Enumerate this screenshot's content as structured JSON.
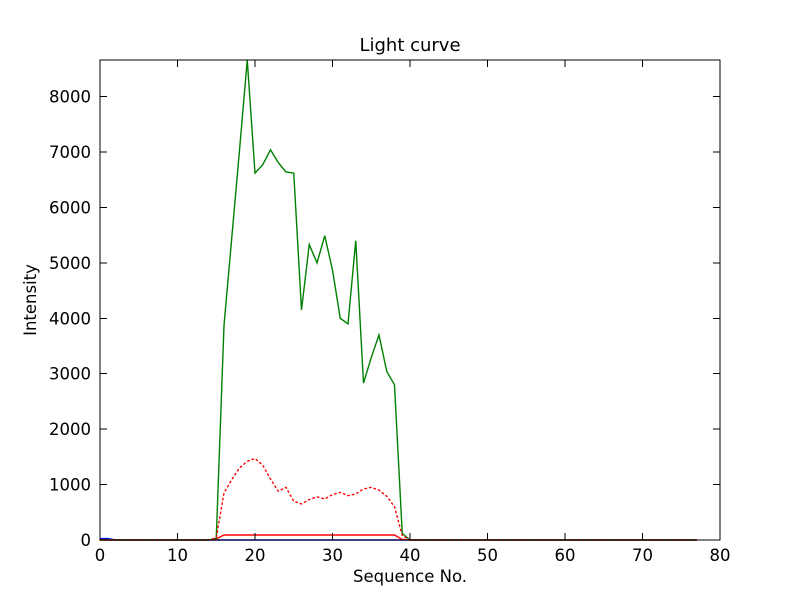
{
  "figure": {
    "title": "Light curve",
    "background_color": "#ffffff",
    "axes_edge_color": "#000000"
  },
  "chart_data": {
    "type": "line",
    "title": "Light curve",
    "xlabel": "Sequence No.",
    "ylabel": "Intensity",
    "xlim": [
      0,
      80
    ],
    "ylim": [
      0,
      8660
    ],
    "xticks": [
      0,
      10,
      20,
      30,
      40,
      50,
      60,
      70,
      80
    ],
    "yticks": [
      0,
      1000,
      2000,
      3000,
      4000,
      5000,
      6000,
      7000,
      8000
    ],
    "grid": false,
    "legend_position": "none",
    "x": [
      0,
      1,
      2,
      3,
      4,
      5,
      6,
      7,
      8,
      9,
      10,
      11,
      12,
      13,
      14,
      15,
      16,
      17,
      18,
      19,
      20,
      21,
      22,
      23,
      24,
      25,
      26,
      27,
      28,
      29,
      30,
      31,
      32,
      33,
      34,
      35,
      36,
      37,
      38,
      39,
      40,
      41,
      42,
      43,
      44,
      45,
      46,
      47,
      48,
      49,
      50,
      51,
      52,
      53,
      54,
      55,
      56,
      57,
      58,
      59,
      60,
      61,
      62,
      63,
      64,
      65,
      66,
      67,
      68,
      69,
      70,
      71,
      72,
      73,
      74,
      75,
      76,
      77
    ],
    "series": [
      {
        "name": "blue-solid",
        "color": "#0000ff",
        "style": "solid",
        "values": [
          25,
          25,
          0,
          0,
          0,
          0,
          0,
          0,
          0,
          0,
          0,
          0,
          0,
          0,
          0,
          0,
          0,
          0,
          0,
          0,
          0,
          0,
          0,
          0,
          0,
          0,
          0,
          0,
          0,
          0,
          0,
          0,
          0,
          0,
          0,
          0,
          0,
          0,
          0,
          0,
          0,
          0,
          0,
          0,
          0,
          0,
          0,
          0,
          0,
          0,
          0,
          0,
          0,
          0,
          0,
          0,
          0,
          0,
          0,
          0,
          0,
          0,
          0,
          0,
          0,
          0,
          0,
          0,
          0,
          0,
          0,
          0,
          0,
          0,
          0,
          0,
          0,
          0
        ]
      },
      {
        "name": "red-solid",
        "color": "#ff0000",
        "style": "solid",
        "values": [
          0,
          0,
          0,
          0,
          0,
          0,
          0,
          0,
          0,
          0,
          0,
          0,
          0,
          0,
          0,
          20,
          90,
          90,
          90,
          90,
          90,
          90,
          90,
          90,
          90,
          90,
          90,
          90,
          90,
          90,
          90,
          90,
          90,
          90,
          90,
          90,
          90,
          90,
          90,
          10,
          0,
          0,
          0,
          0,
          0,
          0,
          0,
          0,
          0,
          0,
          0,
          0,
          0,
          0,
          0,
          0,
          0,
          0,
          0,
          0,
          0,
          0,
          0,
          0,
          0,
          0,
          0,
          0,
          0,
          0,
          0,
          0,
          0,
          0,
          0,
          0,
          0,
          0
        ]
      },
      {
        "name": "green-solid",
        "color": "#008000",
        "style": "solid",
        "values": [
          0,
          0,
          0,
          0,
          0,
          0,
          0,
          0,
          0,
          0,
          0,
          0,
          0,
          0,
          0,
          30,
          3870,
          5450,
          7030,
          8660,
          6620,
          6770,
          7040,
          6810,
          6640,
          6620,
          4150,
          5330,
          5000,
          5490,
          4870,
          4000,
          3900,
          5400,
          2830,
          3290,
          3700,
          3040,
          2800,
          120,
          0,
          0,
          0,
          0,
          0,
          0,
          0,
          0,
          0,
          0,
          0,
          0,
          0,
          0,
          0,
          0,
          0,
          0,
          0,
          0,
          0,
          0,
          0,
          0,
          0,
          0,
          0,
          0,
          0,
          0,
          0,
          0,
          0,
          0,
          0,
          0,
          0,
          0
        ]
      },
      {
        "name": "red-dotted",
        "color": "#ff0000",
        "style": "dotted",
        "values": [
          0,
          0,
          0,
          0,
          0,
          0,
          0,
          0,
          0,
          0,
          0,
          0,
          0,
          0,
          0,
          40,
          850,
          1090,
          1300,
          1420,
          1470,
          1350,
          1100,
          880,
          950,
          700,
          650,
          730,
          780,
          740,
          820,
          860,
          800,
          830,
          920,
          950,
          900,
          790,
          600,
          80,
          0,
          0,
          0,
          0,
          0,
          0,
          0,
          0,
          0,
          0,
          0,
          0,
          0,
          0,
          0,
          0,
          0,
          0,
          0,
          0,
          0,
          0,
          0,
          0,
          0,
          0,
          0,
          0,
          0,
          0,
          0,
          0,
          0,
          0,
          0,
          0,
          0,
          0
        ]
      }
    ]
  }
}
